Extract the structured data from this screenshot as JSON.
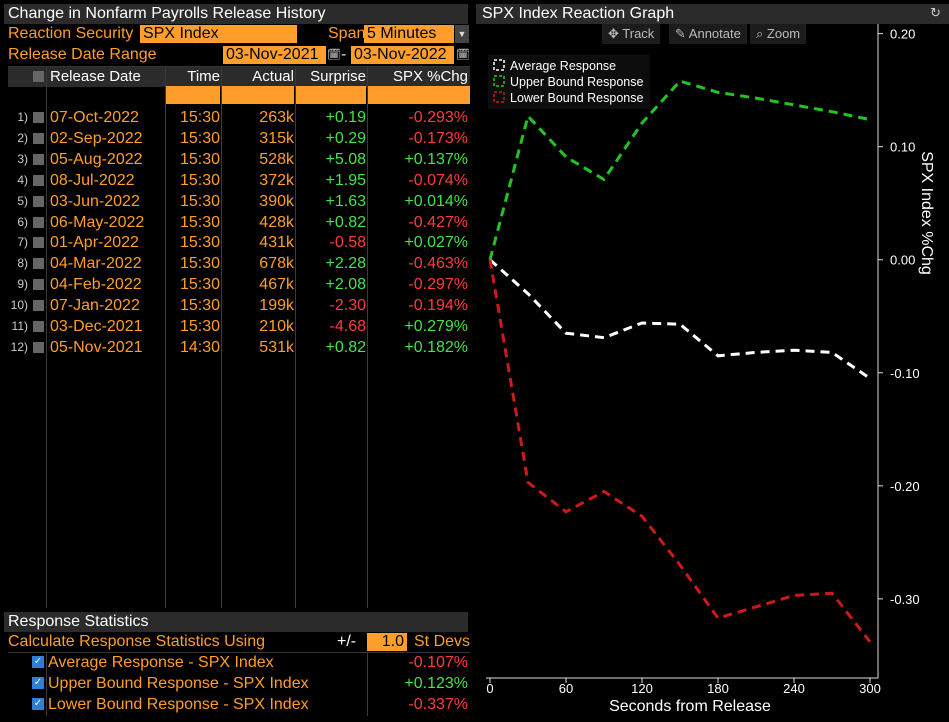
{
  "left_title": "Change in Nonfarm Payrolls Release History",
  "reaction_security_label": "Reaction Security",
  "reaction_security_value": "SPX Index",
  "span_label": "Span",
  "span_value": "5 Minutes",
  "release_range_label": "Release Date Range",
  "range_start": "03-Nov-2021",
  "range_end": "03-Nov-2022",
  "range_sep": "-",
  "columns": {
    "release_date": "Release Date",
    "time": "Time",
    "actual": "Actual",
    "surprise": "Surprise",
    "spx_chg": "SPX %Chg"
  },
  "rows": [
    {
      "n": "1)",
      "date": "07-Oct-2022",
      "time": "15:30",
      "actual": "263k",
      "surprise": "+0.19",
      "chg": "-0.293%"
    },
    {
      "n": "2)",
      "date": "02-Sep-2022",
      "time": "15:30",
      "actual": "315k",
      "surprise": "+0.29",
      "chg": "-0.173%"
    },
    {
      "n": "3)",
      "date": "05-Aug-2022",
      "time": "15:30",
      "actual": "528k",
      "surprise": "+5.08",
      "chg": "+0.137%"
    },
    {
      "n": "4)",
      "date": "08-Jul-2022",
      "time": "15:30",
      "actual": "372k",
      "surprise": "+1.95",
      "chg": "-0.074%"
    },
    {
      "n": "5)",
      "date": "03-Jun-2022",
      "time": "15:30",
      "actual": "390k",
      "surprise": "+1.63",
      "chg": "+0.014%"
    },
    {
      "n": "6)",
      "date": "06-May-2022",
      "time": "15:30",
      "actual": "428k",
      "surprise": "+0.82",
      "chg": "-0.427%"
    },
    {
      "n": "7)",
      "date": "01-Apr-2022",
      "time": "15:30",
      "actual": "431k",
      "surprise": "-0.58",
      "chg": "+0.027%"
    },
    {
      "n": "8)",
      "date": "04-Mar-2022",
      "time": "15:30",
      "actual": "678k",
      "surprise": "+2.28",
      "chg": "-0.463%"
    },
    {
      "n": "9)",
      "date": "04-Feb-2022",
      "time": "15:30",
      "actual": "467k",
      "surprise": "+2.08",
      "chg": "-0.297%"
    },
    {
      "n": "10)",
      "date": "07-Jan-2022",
      "time": "15:30",
      "actual": "199k",
      "surprise": "-2.30",
      "chg": "-0.194%"
    },
    {
      "n": "11)",
      "date": "03-Dec-2021",
      "time": "15:30",
      "actual": "210k",
      "surprise": "-4.68",
      "chg": "+0.279%"
    },
    {
      "n": "12)",
      "date": "05-Nov-2021",
      "time": "14:30",
      "actual": "531k",
      "surprise": "+0.82",
      "chg": "+0.182%"
    }
  ],
  "stats": {
    "title": "Response Statistics",
    "calc_label": "Calculate Response Statistics Using",
    "pm": "+/-",
    "stdev_value": "1.0",
    "stdev_label": "St Devs",
    "items": [
      {
        "label": "Average Response - SPX Index",
        "value": "-0.107%"
      },
      {
        "label": "Upper Bound Response - SPX Index",
        "value": "+0.123%"
      },
      {
        "label": "Lower Bound Response - SPX Index",
        "value": "-0.337%"
      }
    ]
  },
  "graph": {
    "title": "SPX Index Reaction Graph",
    "tools": {
      "track": "Track",
      "annotate": "Annotate",
      "zoom": "Zoom"
    }
  },
  "colors": {
    "orange": "#ff9e2a",
    "positive": "#43e34b",
    "negative": "#ff3b3b",
    "average_series": "#ffffff",
    "upper_series": "#22c322",
    "lower_series": "#cc1a1a"
  },
  "chart_data": {
    "type": "line",
    "title": "SPX Index Reaction Graph",
    "xlabel": "Seconds from Release",
    "ylabel": "SPX Index %Chg",
    "xlim": [
      0,
      300
    ],
    "ylim": [
      -0.37,
      0.205
    ],
    "x_ticks": [
      0,
      60,
      120,
      180,
      240,
      300
    ],
    "y_ticks": [
      0.2,
      0.1,
      0.0,
      -0.1,
      -0.2,
      -0.3
    ],
    "y_tick_labels": [
      "0.20",
      "0.10",
      "0.00",
      "-0.10",
      "-0.20",
      "-0.30"
    ],
    "legend_position": "top-left",
    "grid": false,
    "series": [
      {
        "name": "Average Response",
        "color": "#ffffff",
        "x": [
          0,
          30,
          60,
          90,
          120,
          150,
          180,
          210,
          240,
          270,
          300
        ],
        "y": [
          0.0,
          -0.03,
          -0.065,
          -0.069,
          -0.056,
          -0.057,
          -0.085,
          -0.082,
          -0.08,
          -0.082,
          -0.105
        ]
      },
      {
        "name": "Upper Bound Response",
        "color": "#22c322",
        "x": [
          0,
          30,
          60,
          90,
          120,
          150,
          180,
          210,
          240,
          270,
          300
        ],
        "y": [
          0.0,
          0.127,
          0.091,
          0.071,
          0.121,
          0.158,
          0.148,
          0.143,
          0.137,
          0.131,
          0.124
        ]
      },
      {
        "name": "Lower Bound Response",
        "color": "#cc1a1a",
        "x": [
          0,
          30,
          60,
          90,
          120,
          150,
          180,
          210,
          240,
          270,
          300
        ],
        "y": [
          0.0,
          -0.197,
          -0.223,
          -0.205,
          -0.227,
          -0.27,
          -0.317,
          -0.307,
          -0.297,
          -0.295,
          -0.338
        ]
      }
    ]
  }
}
